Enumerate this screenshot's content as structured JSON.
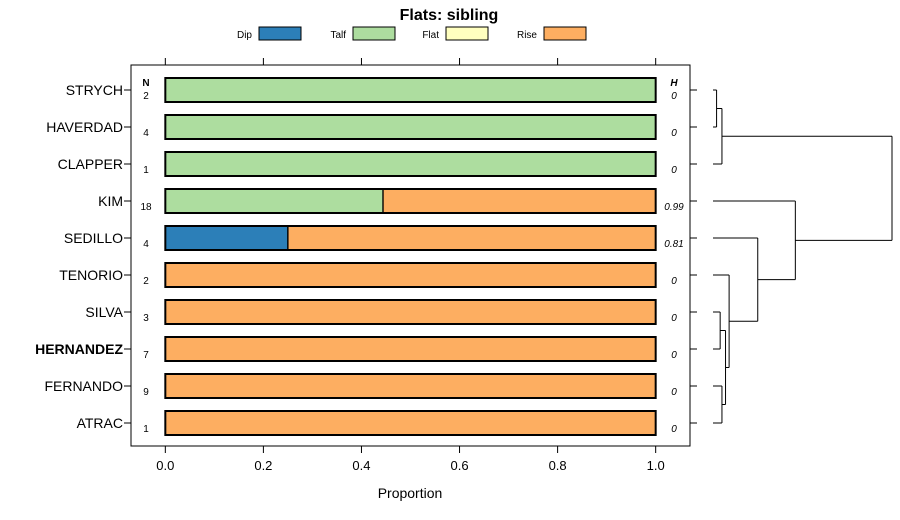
{
  "chart_data": {
    "type": "bar",
    "orientation": "horizontal",
    "stacked": true,
    "title": "Flats: sibling",
    "xlabel": "Proportion",
    "ylabel": "",
    "xlim": [
      -0.07,
      1.07
    ],
    "x_ticks": [
      "0.0",
      "0.2",
      "0.4",
      "0.6",
      "0.8",
      "1.0"
    ],
    "grid": false,
    "legend": {
      "placement": "top",
      "entries": [
        {
          "name": "Dip",
          "color": "#2c7fb8"
        },
        {
          "name": "Talf",
          "color": "#addd9f"
        },
        {
          "name": "Flat",
          "color": "#ffffbf"
        },
        {
          "name": "Rise",
          "color": "#fdae61"
        }
      ]
    },
    "n_header": "N",
    "h_header": "H",
    "categories": [
      "STRYCH",
      "HAVERDAD",
      "CLAPPER",
      "KIM",
      "SEDILLO",
      "TENORIO",
      "SILVA",
      "HERNANDEZ",
      "FERNANDO",
      "ATRAC"
    ],
    "highlighted": "HERNANDEZ",
    "n": [
      "2",
      "4",
      "1",
      "18",
      "4",
      "2",
      "3",
      "7",
      "9",
      "1"
    ],
    "h": [
      "0",
      "0",
      "0",
      "0.99",
      "0.81",
      "0",
      "0",
      "0",
      "0",
      "0"
    ],
    "series": [
      {
        "name": "Dip",
        "color": "#2c7fb8",
        "values": [
          0,
          0,
          0,
          0,
          0.25,
          0,
          0,
          0,
          0,
          0
        ]
      },
      {
        "name": "Talf",
        "color": "#addd9f",
        "values": [
          1,
          1,
          1,
          0.444,
          0,
          0,
          0,
          0,
          0,
          0
        ]
      },
      {
        "name": "Flat",
        "color": "#ffffbf",
        "values": [
          0,
          0,
          0,
          0,
          0,
          0,
          0,
          0,
          0,
          0
        ]
      },
      {
        "name": "Rise",
        "color": "#fdae61",
        "values": [
          0,
          0,
          0,
          0.556,
          0.75,
          1,
          1,
          1,
          1,
          1
        ]
      }
    ],
    "dendrogram": {
      "leaves": [
        "STRYCH",
        "HAVERDAD",
        "CLAPPER",
        "KIM",
        "SEDILLO",
        "TENORIO",
        "SILVA",
        "HERNANDEZ",
        "FERNANDO",
        "ATRAC"
      ],
      "merges": [
        {
          "a": "STRYCH",
          "b": "HAVERDAD",
          "height": 0.02
        },
        {
          "a": "m0",
          "b": "CLAPPER",
          "height": 0.05
        },
        {
          "a": "SILVA",
          "b": "HERNANDEZ",
          "height": 0.04
        },
        {
          "a": "FERNANDO",
          "b": "ATRAC",
          "height": 0.05
        },
        {
          "a": "m2",
          "b": "m3",
          "height": 0.07
        },
        {
          "a": "TENORIO",
          "b": "m4",
          "height": 0.09
        },
        {
          "a": "SEDILLO",
          "b": "m5",
          "height": 0.25
        },
        {
          "a": "KIM",
          "b": "m6",
          "height": 0.46
        },
        {
          "a": "m1",
          "b": "m7",
          "height": 1.0
        }
      ]
    }
  }
}
